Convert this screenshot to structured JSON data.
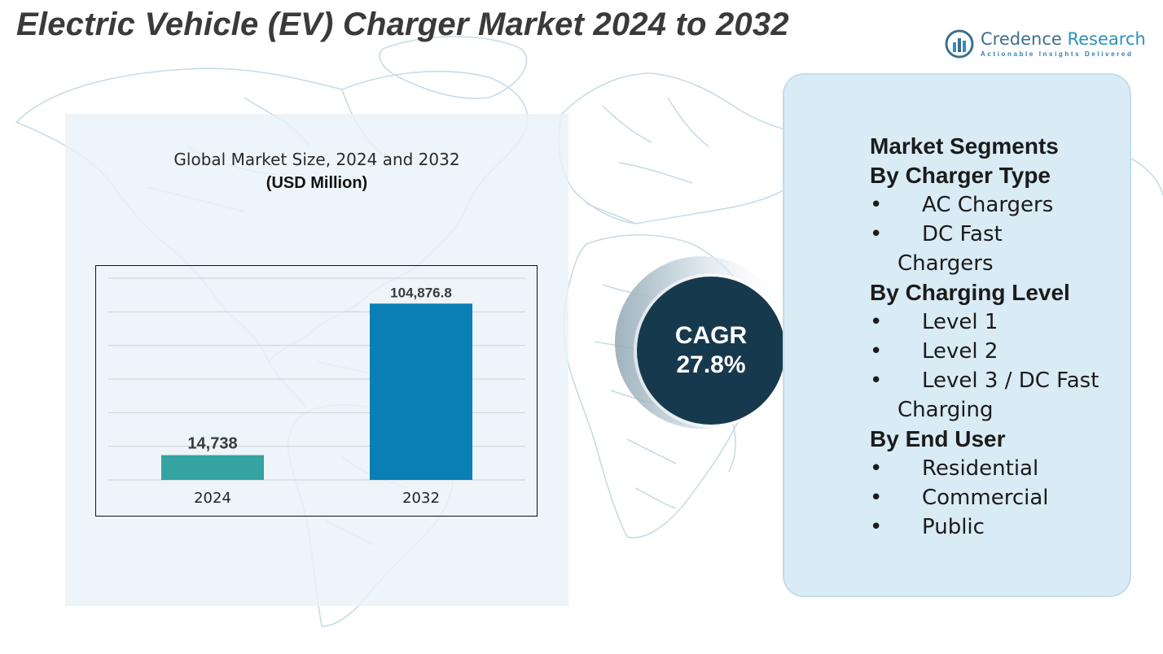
{
  "title": "Electric Vehicle (EV) Charger Market 2024 to 2032",
  "logo": {
    "name_part1": "Credence",
    "name_part2": "Research",
    "tagline": "Actionable Insights Delivered",
    "icon": "credence-bars-icon"
  },
  "colors": {
    "title": "#3a3a3a",
    "bar_2024": "#34a3a1",
    "bar_2032": "#0a7fb5",
    "cagr_circle": "#17394d",
    "segment_panel": "#d9ebf5",
    "map_lines": "#c9dbe6"
  },
  "chart_data": {
    "type": "bar",
    "title": "Global Market Size, 2024 and 2032",
    "unit_label": "(USD Million)",
    "categories": [
      "2024",
      "2032"
    ],
    "values": [
      14738,
      104876.8
    ],
    "value_labels": [
      "14,738",
      "104,876.8"
    ],
    "ylim": [
      0,
      120000
    ],
    "grid": true,
    "colors": [
      "#34a3a1",
      "#0a7fb5"
    ]
  },
  "cagr": {
    "label": "CAGR",
    "value": "27.8%"
  },
  "segments": {
    "heading": "Market Segments",
    "groups": [
      {
        "title": "By Charger Type",
        "items": [
          {
            "line1": "AC Chargers",
            "line2": ""
          },
          {
            "line1": "DC Fast",
            "line2": "Chargers"
          }
        ]
      },
      {
        "title": "By Charging Level",
        "items": [
          {
            "line1": "Level 1",
            "line2": ""
          },
          {
            "line1": "Level 2",
            "line2": ""
          },
          {
            "line1": "Level 3 / DC Fast",
            "line2": "Charging"
          }
        ]
      },
      {
        "title": "By End User",
        "items": [
          {
            "line1": "Residential",
            "line2": ""
          },
          {
            "line1": "Commercial",
            "line2": ""
          },
          {
            "line1": "Public",
            "line2": ""
          }
        ]
      }
    ]
  }
}
